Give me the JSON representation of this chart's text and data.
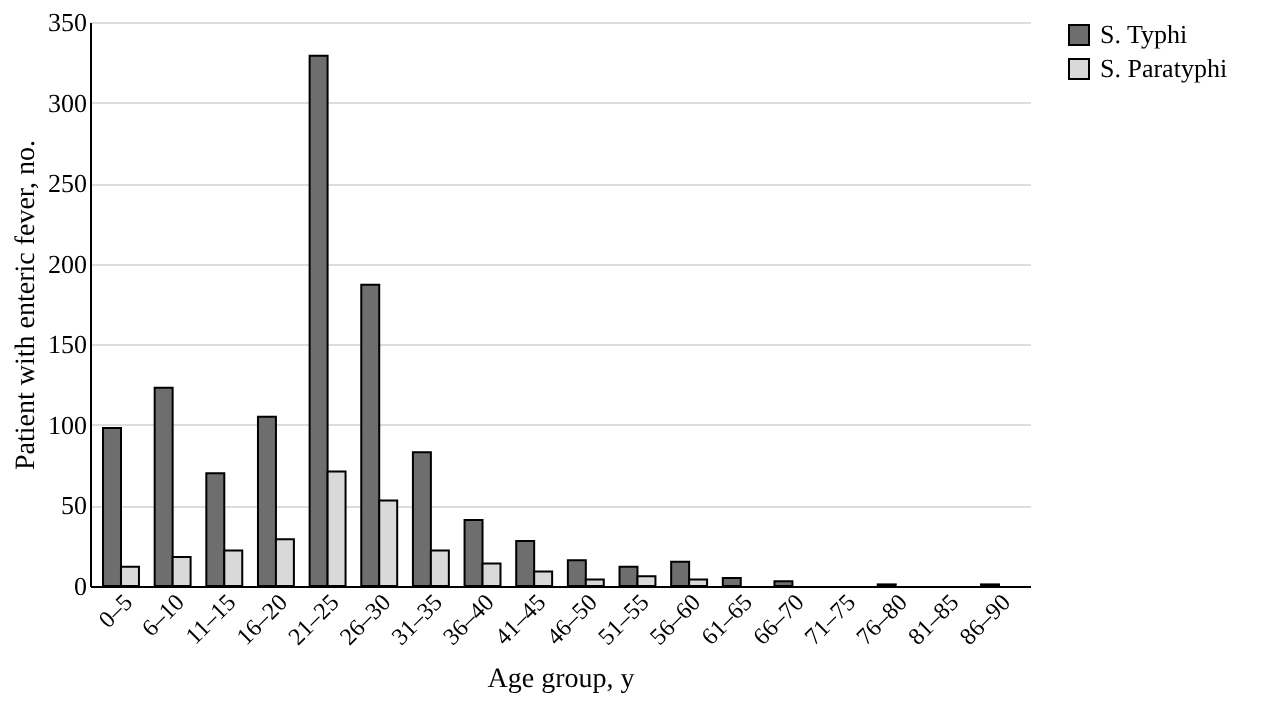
{
  "chart_data": {
    "type": "bar",
    "xlabel": "Age group, y",
    "ylabel": "Patient with enteric fever, no.",
    "categories": [
      "0–5",
      "6–10",
      "11–15",
      "16–20",
      "21–25",
      "26–30",
      "31–35",
      "36–40",
      "41–45",
      "46–50",
      "51–55",
      "56–60",
      "61–65",
      "66–70",
      "71–75",
      "76–80",
      "81–85",
      "86–90"
    ],
    "series": [
      {
        "name": "S. Typhi",
        "color": "#6e6e6e",
        "values": [
          98,
          123,
          70,
          105,
          329,
          187,
          83,
          41,
          28,
          16,
          12,
          15,
          5,
          3,
          0,
          1,
          0,
          1
        ]
      },
      {
        "name": "S. Paratyphi",
        "color": "#d9d9d9",
        "values": [
          12,
          18,
          22,
          29,
          71,
          53,
          22,
          14,
          9,
          4,
          6,
          4,
          0,
          0,
          0,
          0,
          0,
          0
        ]
      }
    ],
    "ylim": [
      0,
      350
    ],
    "yticks": [
      0,
      50,
      100,
      150,
      200,
      250,
      300,
      350
    ],
    "grid": "y",
    "legend": "right"
  }
}
